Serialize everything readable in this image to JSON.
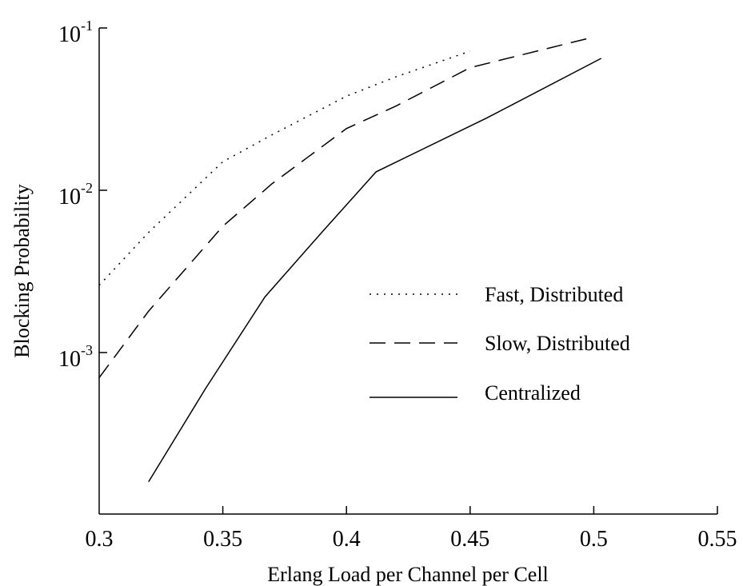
{
  "chart_data": {
    "type": "line",
    "title": "",
    "xlabel": "Erlang Load per Channel per Cell",
    "ylabel": "Blocking Probability",
    "xlim": [
      0.3,
      0.55
    ],
    "ylim": [
      0.00015,
      0.1
    ],
    "yscale": "log",
    "x_ticks": [
      "0.3",
      "0.35",
      "0.4",
      "0.45",
      "0.5",
      "0.55"
    ],
    "y_ticks": [
      {
        "value": 0.1,
        "base": "10",
        "exp": "-1"
      },
      {
        "value": 0.01,
        "base": "10",
        "exp": "-2"
      },
      {
        "value": 0.001,
        "base": "10",
        "exp": "-3"
      }
    ],
    "grid": false,
    "legend_position": "center-right",
    "series": [
      {
        "name": "Fast, Distributed",
        "style": "dotted",
        "x": [
          0.3,
          0.32,
          0.35,
          0.37,
          0.4,
          0.42,
          0.45
        ],
        "y": [
          0.0026,
          0.0055,
          0.015,
          0.022,
          0.038,
          0.05,
          0.072
        ]
      },
      {
        "name": "Slow, Distributed",
        "style": "dashed",
        "x": [
          0.3,
          0.32,
          0.35,
          0.37,
          0.4,
          0.42,
          0.45,
          0.5
        ],
        "y": [
          0.0007,
          0.0018,
          0.006,
          0.011,
          0.024,
          0.033,
          0.057,
          0.088
        ]
      },
      {
        "name": "Centralized",
        "style": "solid",
        "x": [
          0.32,
          0.343,
          0.367,
          0.39,
          0.412,
          0.457,
          0.503
        ],
        "y": [
          0.00016,
          0.0006,
          0.0022,
          0.0055,
          0.013,
          0.028,
          0.065
        ]
      }
    ]
  }
}
